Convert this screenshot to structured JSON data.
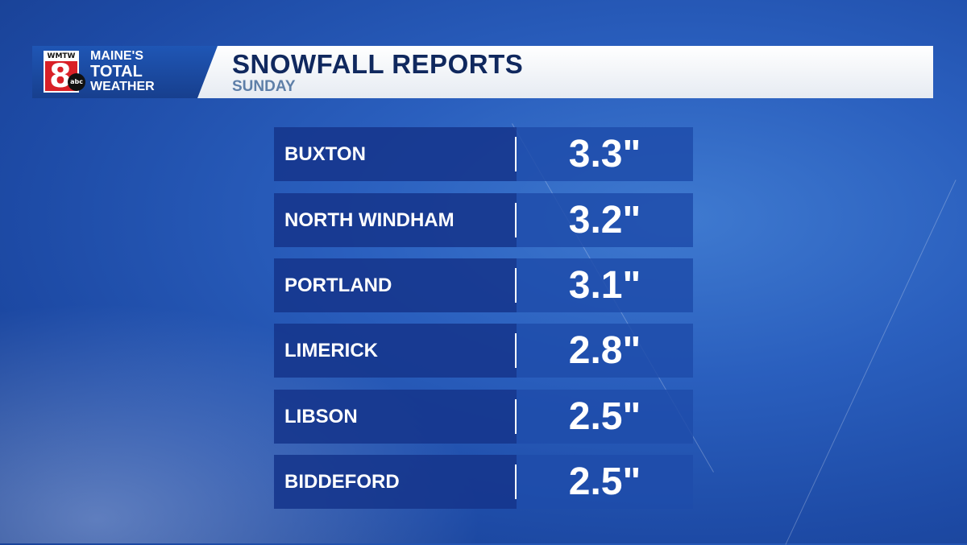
{
  "logo": {
    "station": "WMTW",
    "channel": "8",
    "network": "abc",
    "brand_lines": [
      "MAINE'S",
      "TOTAL",
      "WEATHER"
    ]
  },
  "header": {
    "title": "SNOWFALL REPORTS",
    "subtitle": "SUNDAY"
  },
  "reports": [
    {
      "city": "BUXTON",
      "amount": "3.3\""
    },
    {
      "city": "NORTH WINDHAM",
      "amount": "3.2\""
    },
    {
      "city": "PORTLAND",
      "amount": "3.1\""
    },
    {
      "city": "LIMERICK",
      "amount": "2.8\""
    },
    {
      "city": "LIBSON",
      "amount": "2.5\""
    },
    {
      "city": "BIDDEFORD",
      "amount": "2.5\""
    }
  ],
  "colors": {
    "title": "#10285e",
    "subtitle": "#5e7fa8",
    "row_bg": "#16368c",
    "background": "#2a5fbe"
  }
}
